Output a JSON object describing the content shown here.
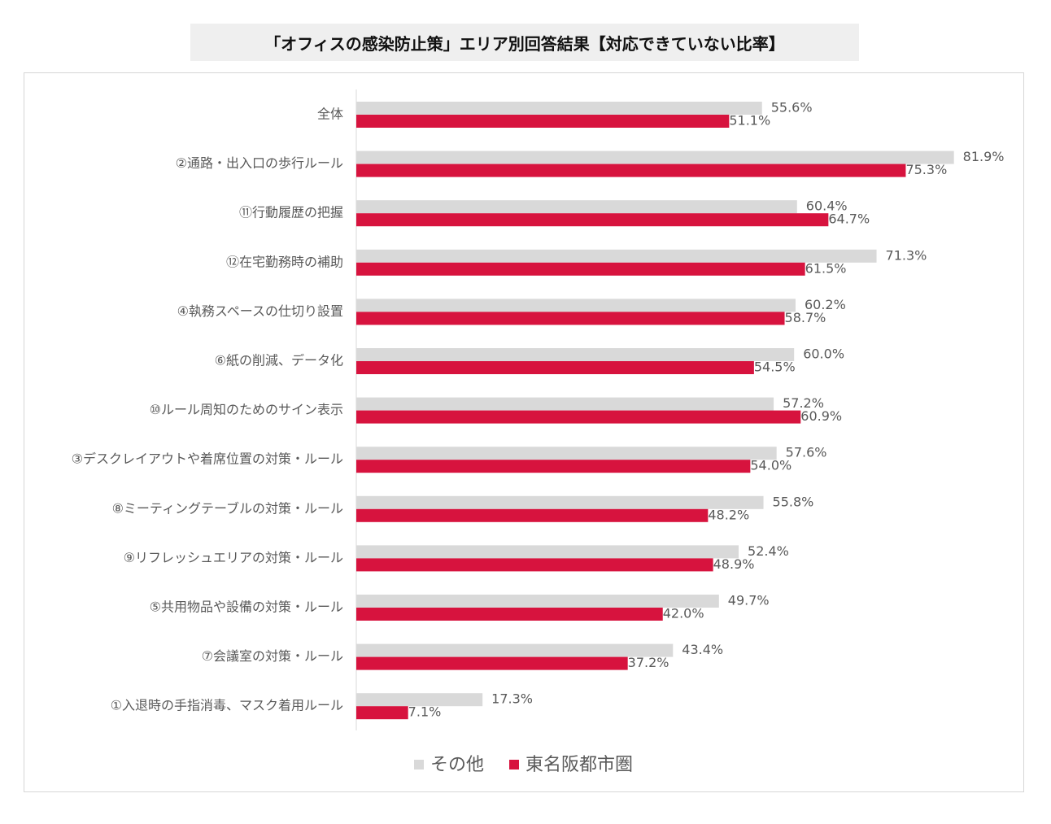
{
  "chart_data": {
    "type": "bar",
    "orientation": "horizontal",
    "title": "「オフィスの感染防止策」エリア別回答結果【対応できていない比率】",
    "categories": [
      "全体",
      "②通路・出入口の歩行ルール",
      "⑪行動履歴の把握",
      "⑫在宅勤務時の補助",
      "④執務スペースの仕切り設置",
      "⑥紙の削減、データ化",
      "⑩ルール周知のためのサイン表示",
      "③デスクレイアウトや着席位置の対策・ルール",
      "⑧ミーティングテーブルの対策・ルール",
      "⑨リフレッシュエリアの対策・ルール",
      "⑤共用物品や設備の対策・ルール",
      "⑦会議室の対策・ルール",
      "①入退時の手指消毒、マスク着用ルール"
    ],
    "series": [
      {
        "name": "その他",
        "color": "#d9d9d9",
        "values": [
          55.6,
          81.9,
          60.4,
          71.3,
          60.2,
          60.0,
          57.2,
          57.6,
          55.8,
          52.4,
          49.7,
          43.4,
          17.3
        ]
      },
      {
        "name": "東名阪都市圏",
        "color": "#d7133e",
        "values": [
          51.1,
          75.3,
          64.7,
          61.5,
          58.7,
          54.5,
          60.9,
          54.0,
          48.2,
          48.9,
          42.0,
          37.2,
          7.1
        ]
      }
    ],
    "value_format": "%",
    "xlim": [
      0,
      100
    ],
    "legend_position": "bottom",
    "grid": false
  }
}
